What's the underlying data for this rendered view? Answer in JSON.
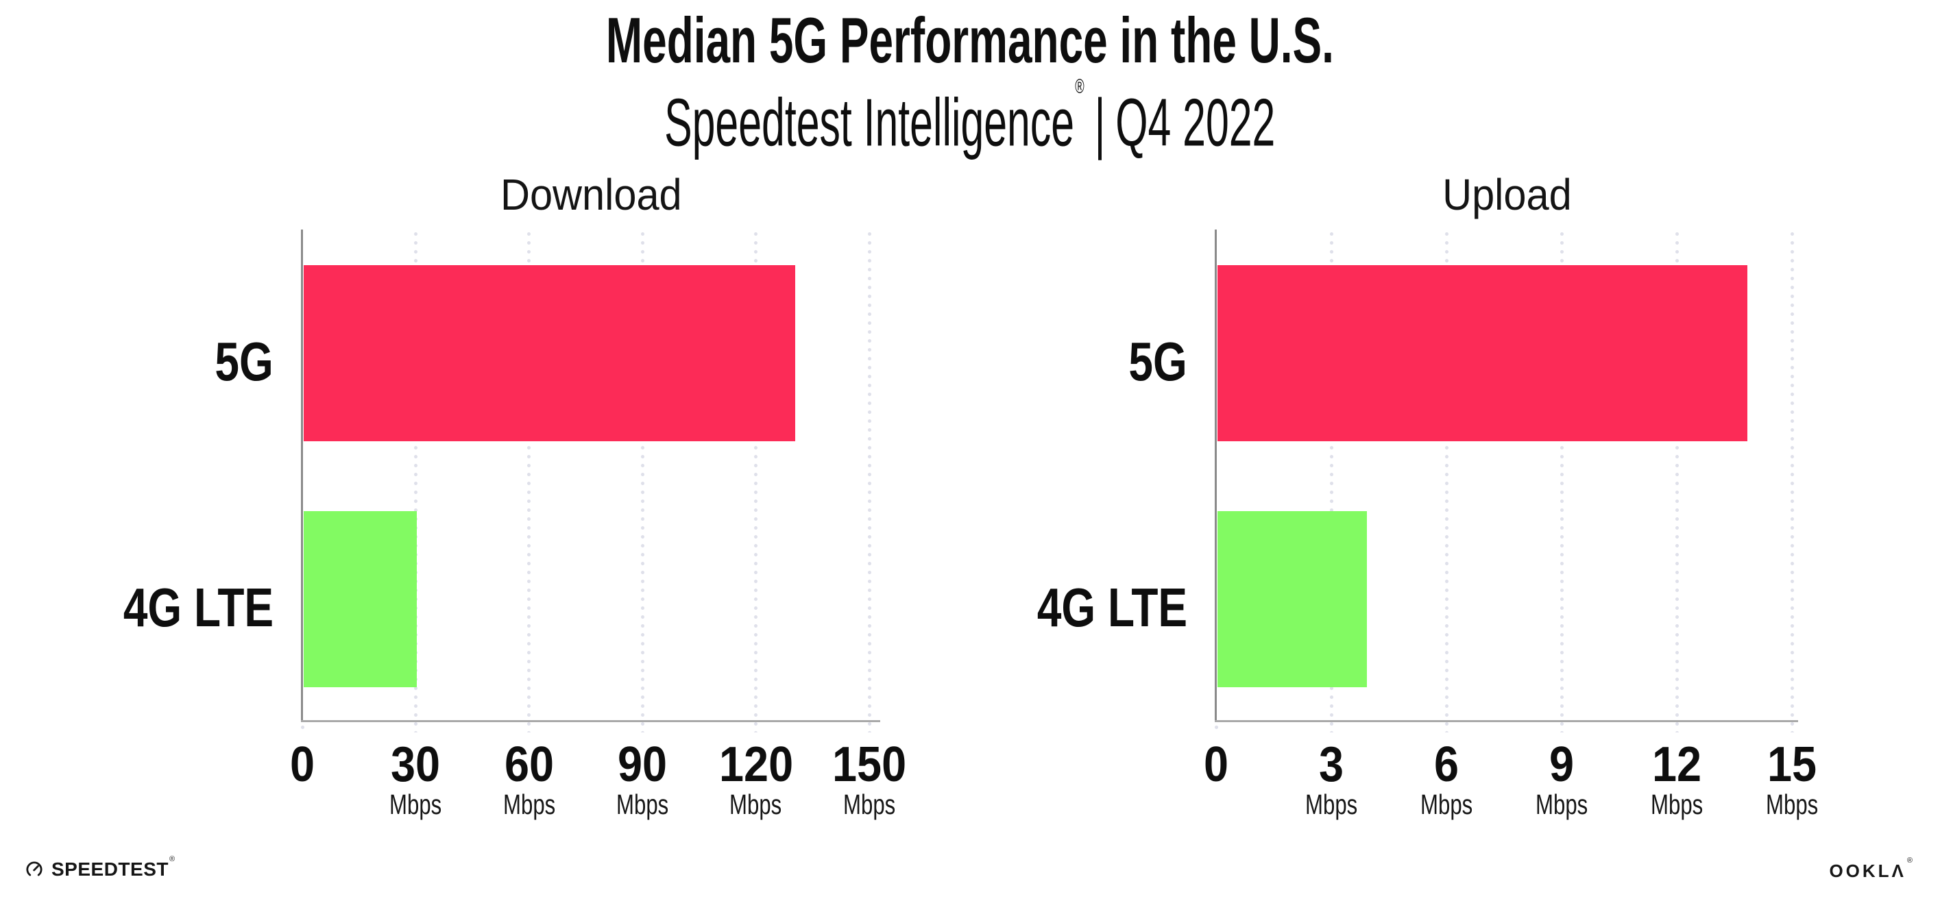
{
  "header": {
    "title": "Median 5G Performance in the U.S.",
    "subtitle": {
      "brand": "Speedtest Intelligence",
      "registered": "®",
      "separator": "|",
      "period": "Q4 2022"
    }
  },
  "chart_data": [
    {
      "type": "bar",
      "orientation": "horizontal",
      "title": "Download",
      "categories": [
        "5G",
        "4G LTE"
      ],
      "values": [
        130,
        30
      ],
      "unit": "Mbps",
      "xlim": [
        0,
        150
      ],
      "xticks": [
        0,
        30,
        60,
        90,
        120,
        150
      ],
      "bar_colors": [
        "#fc2b57",
        "#82fa62"
      ],
      "grid": "dotted-vertical",
      "legend": "none"
    },
    {
      "type": "bar",
      "orientation": "horizontal",
      "title": "Upload",
      "categories": [
        "5G",
        "4G LTE"
      ],
      "values": [
        13.8,
        3.9
      ],
      "unit": "Mbps",
      "xlim": [
        0,
        15
      ],
      "xticks": [
        0,
        3,
        6,
        9,
        12,
        15
      ],
      "bar_colors": [
        "#fc2b57",
        "#82fa62"
      ],
      "grid": "dotted-vertical",
      "legend": "none"
    }
  ],
  "colors": {
    "bar_5g": "#fc2b57",
    "bar_4g_lte": "#82fa62",
    "grid_dot": "#dfe0ea",
    "y_axis": "#8a8a8a",
    "x_axis": "#a9a9a9",
    "text": "#0e0e0e"
  },
  "footer": {
    "speedtest_wordmark": "SPEEDTEST",
    "speedtest_mark": "®",
    "ookla_wordmark": "OOKLΛ",
    "ookla_mark": "®"
  }
}
